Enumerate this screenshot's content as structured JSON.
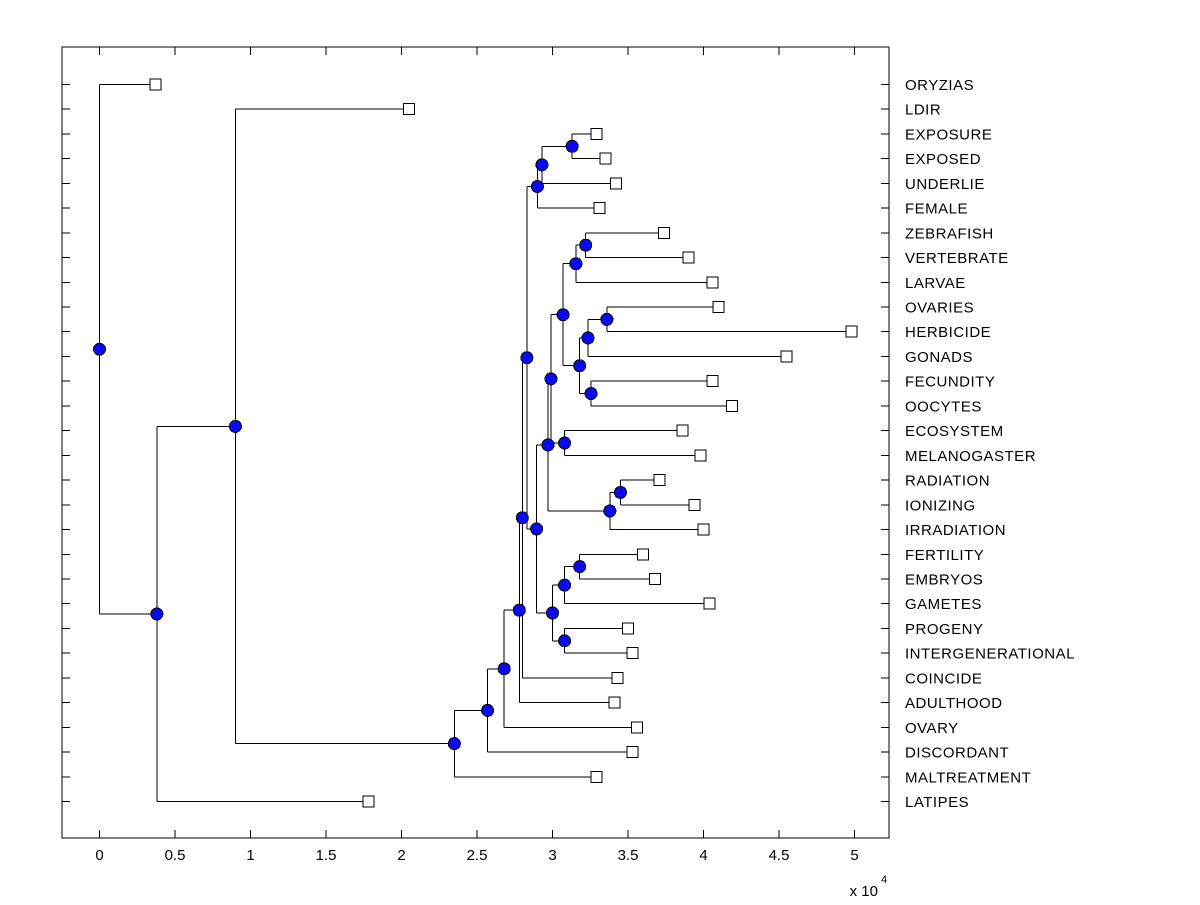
{
  "figure": {
    "background": "#ffffff",
    "line_color": "#000000",
    "node_dot_color": "#0a0af0",
    "node_dot_edge": "#000000",
    "leaf_marker_fill": "#ffffff",
    "leaf_marker_edge": "#000000"
  },
  "chart_data": {
    "type": "dendrogram",
    "orientation": "left-to-right",
    "title": "",
    "xlabel": "",
    "ylabel": "",
    "x_scale_label": {
      "text": "x 10",
      "exponent": "4"
    },
    "x_ticks": [
      0,
      0.5,
      1,
      1.5,
      2,
      2.5,
      3,
      3.5,
      4,
      4.5,
      5
    ],
    "x_tick_labels": [
      "0",
      "0.5",
      "1",
      "1.5",
      "2",
      "2.5",
      "3",
      "3.5",
      "4",
      "4.5",
      "5"
    ],
    "xlim": [
      -0.25,
      5.23
    ],
    "grid": false,
    "legend": "none",
    "units_note": "branch x positions are in units of 10^4",
    "leaves": [
      {
        "name": "ORYZIAS",
        "x": 0.37
      },
      {
        "name": "LDIR",
        "x": 2.05
      },
      {
        "name": "EXPOSURE",
        "x": 3.29
      },
      {
        "name": "EXPOSED",
        "x": 3.35
      },
      {
        "name": "UNDERLIE",
        "x": 3.42
      },
      {
        "name": "FEMALE",
        "x": 3.31
      },
      {
        "name": "ZEBRAFISH",
        "x": 3.74
      },
      {
        "name": "VERTEBRATE",
        "x": 3.9
      },
      {
        "name": "LARVAE",
        "x": 4.06
      },
      {
        "name": "OVARIES",
        "x": 4.1
      },
      {
        "name": "HERBICIDE",
        "x": 4.98
      },
      {
        "name": "GONADS",
        "x": 4.55
      },
      {
        "name": "FECUNDITY",
        "x": 4.06
      },
      {
        "name": "OOCYTES",
        "x": 4.19
      },
      {
        "name": "ECOSYSTEM",
        "x": 3.86
      },
      {
        "name": "MELANOGASTER",
        "x": 3.98
      },
      {
        "name": "RADIATION",
        "x": 3.71
      },
      {
        "name": "IONIZING",
        "x": 3.94
      },
      {
        "name": "IRRADIATION",
        "x": 4.0
      },
      {
        "name": "FERTILITY",
        "x": 3.6
      },
      {
        "name": "EMBRYOS",
        "x": 3.68
      },
      {
        "name": "GAMETES",
        "x": 4.04
      },
      {
        "name": "PROGENY",
        "x": 3.5
      },
      {
        "name": "INTERGENERATIONAL",
        "x": 3.53
      },
      {
        "name": "COINCIDE",
        "x": 3.43
      },
      {
        "name": "ADULTHOOD",
        "x": 3.41
      },
      {
        "name": "OVARY",
        "x": 3.56
      },
      {
        "name": "DISCORDANT",
        "x": 3.53
      },
      {
        "name": "MALTREATMENT",
        "x": 3.29
      },
      {
        "name": "LATIPES",
        "x": 1.78
      }
    ],
    "tree": {
      "x": 0.0,
      "children": [
        {
          "leaf": "ORYZIAS"
        },
        {
          "x": 0.38,
          "children": [
            {
              "x": 0.9,
              "children": [
                {
                  "leaf": "LDIR"
                },
                {
                  "x": 2.35,
                  "children": [
                    {
                      "x": 2.57,
                      "children": [
                        {
                          "x": 2.68,
                          "children": [
                            {
                              "x": 2.78,
                              "children": [
                                {
                                  "x": 2.8,
                                  "children": [
                                    {
                                      "x": 2.83,
                                      "children": [
                                        {
                                          "x": 2.9,
                                          "children": [
                                            {
                                              "x": 2.93,
                                              "children": [
                                                {
                                                  "x": 3.13,
                                                  "children": [
                                                    {
                                                      "leaf": "EXPOSURE"
                                                    },
                                                    {
                                                      "leaf": "EXPOSED"
                                                    }
                                                  ]
                                                },
                                                {
                                                  "leaf": "UNDERLIE"
                                                }
                                              ]
                                            },
                                            {
                                              "leaf": "FEMALE"
                                            }
                                          ]
                                        },
                                        {
                                          "x": 2.895,
                                          "children": [
                                            {
                                              "x": 2.97,
                                              "children": [
                                                {
                                                  "x": 2.99,
                                                  "children": [
                                                    {
                                                      "x": 3.07,
                                                      "children": [
                                                        {
                                                          "x": 3.155,
                                                          "children": [
                                                            {
                                                              "x": 3.22,
                                                              "children": [
                                                                {
                                                                  "leaf": "ZEBRAFISH"
                                                                },
                                                                {
                                                                  "leaf": "VERTEBRATE"
                                                                }
                                                              ]
                                                            },
                                                            {
                                                              "leaf": "LARVAE"
                                                            }
                                                          ]
                                                        },
                                                        {
                                                          "x": 3.18,
                                                          "children": [
                                                            {
                                                              "x": 3.235,
                                                              "children": [
                                                                {
                                                                  "x": 3.36,
                                                                  "children": [
                                                                    {
                                                                      "leaf": "OVARIES"
                                                                    },
                                                                    {
                                                                      "leaf": "HERBICIDE"
                                                                    }
                                                                  ]
                                                                },
                                                                {
                                                                  "leaf": "GONADS"
                                                                }
                                                              ]
                                                            },
                                                            {
                                                              "x": 3.255,
                                                              "children": [
                                                                {
                                                                  "leaf": "FECUNDITY"
                                                                },
                                                                {
                                                                  "leaf": "OOCYTES"
                                                                }
                                                              ]
                                                            }
                                                          ]
                                                        }
                                                      ]
                                                    },
                                                    {
                                                      "x": 3.08,
                                                      "children": [
                                                        {
                                                          "leaf": "ECOSYSTEM"
                                                        },
                                                        {
                                                          "leaf": "MELANOGASTER"
                                                        }
                                                      ]
                                                    }
                                                  ]
                                                },
                                                {
                                                  "x": 3.38,
                                                  "children": [
                                                    {
                                                      "x": 3.45,
                                                      "children": [
                                                        {
                                                          "leaf": "RADIATION"
                                                        },
                                                        {
                                                          "leaf": "IONIZING"
                                                        }
                                                      ]
                                                    },
                                                    {
                                                      "leaf": "IRRADIATION"
                                                    }
                                                  ]
                                                }
                                              ]
                                            },
                                            {
                                              "x": 3.0,
                                              "children": [
                                                {
                                                  "x": 3.08,
                                                  "children": [
                                                    {
                                                      "x": 3.18,
                                                      "children": [
                                                        {
                                                          "leaf": "FERTILITY"
                                                        },
                                                        {
                                                          "leaf": "EMBRYOS"
                                                        }
                                                      ]
                                                    },
                                                    {
                                                      "leaf": "GAMETES"
                                                    }
                                                  ]
                                                },
                                                {
                                                  "x": 3.08,
                                                  "children": [
                                                    {
                                                      "leaf": "PROGENY"
                                                    },
                                                    {
                                                      "leaf": "INTERGENERATIONAL"
                                                    }
                                                  ]
                                                }
                                              ]
                                            }
                                          ]
                                        }
                                      ]
                                    },
                                    {
                                      "leaf": "COINCIDE"
                                    }
                                  ]
                                },
                                {
                                  "leaf": "ADULTHOOD"
                                }
                              ]
                            },
                            {
                              "leaf": "OVARY"
                            }
                          ]
                        },
                        {
                          "leaf": "DISCORDANT"
                        }
                      ]
                    },
                    {
                      "leaf": "MALTREATMENT"
                    }
                  ]
                }
              ]
            },
            {
              "leaf": "LATIPES"
            }
          ]
        }
      ]
    }
  }
}
